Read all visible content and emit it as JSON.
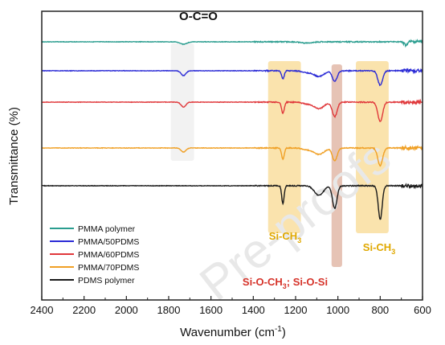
{
  "chart_data": {
    "type": "line",
    "title": "",
    "xlabel": "Wavenumber (cm",
    "xlabel_sup": "-1",
    "xlabel_end": ")",
    "ylabel": "Transmittance (%)",
    "x_reversed": true,
    "xlim": [
      2400,
      600
    ],
    "xticks": [
      "2400",
      "2200",
      "2000",
      "1800",
      "1600",
      "1400",
      "1200",
      "1000",
      "800",
      "600"
    ],
    "y_ticks_shown": false,
    "legend_position": "bottom-left",
    "watermark": "Pre-proofs",
    "series": [
      {
        "name": "PMMA polymer",
        "color": "#2a9d8f",
        "offset": 0,
        "peaks": [
          [
            1730,
            3,
            22
          ],
          [
            1150,
            1.5,
            40
          ],
          [
            680,
            4,
            12
          ]
        ]
      },
      {
        "name": "PMMA/50PDMS",
        "color": "#2b2bd6",
        "offset": 1,
        "peaks": [
          [
            1730,
            6,
            16
          ],
          [
            1260,
            10,
            9
          ],
          [
            1090,
            7,
            35
          ],
          [
            1015,
            13,
            16
          ],
          [
            800,
            18,
            16
          ],
          [
            1150,
            2,
            30
          ]
        ]
      },
      {
        "name": "PMMA/60PDMS",
        "color": "#e0383b",
        "offset": 2,
        "peaks": [
          [
            1730,
            6,
            16
          ],
          [
            1260,
            14,
            9
          ],
          [
            1090,
            8,
            35
          ],
          [
            1015,
            18,
            16
          ],
          [
            800,
            24,
            16
          ],
          [
            1150,
            2,
            30
          ]
        ]
      },
      {
        "name": "PMMA/70PDMS",
        "color": "#f0a025",
        "offset": 3,
        "peaks": [
          [
            1730,
            5,
            16
          ],
          [
            1260,
            14,
            9
          ],
          [
            1090,
            8,
            35
          ],
          [
            1015,
            16,
            16
          ],
          [
            800,
            22,
            16
          ],
          [
            1150,
            2,
            30
          ]
        ]
      },
      {
        "name": "PDMS polymer",
        "color": "#1a1a1a",
        "offset": 4,
        "peaks": [
          [
            1260,
            22,
            8
          ],
          [
            1090,
            12,
            30
          ],
          [
            1015,
            28,
            15
          ],
          [
            800,
            42,
            13
          ]
        ]
      }
    ],
    "annotations": [
      {
        "text": "O-C=O",
        "color": "#111111"
      },
      {
        "text": "Si-CH",
        "sub": "3",
        "color": "#e0a800"
      },
      {
        "text": "Si-CH",
        "sub": "3",
        "color": "#e0a800"
      },
      {
        "text": "Si-O-CH",
        "sub": "3",
        "rest": "; Si-O-Si",
        "color": "#d6332a"
      }
    ],
    "highlight_bands": [
      {
        "x_from": 1790,
        "x_to": 1680,
        "color": "#d9d9d9"
      },
      {
        "x_from": 1330,
        "x_to": 1175,
        "color": "#f5c04a"
      },
      {
        "x_from": 1030,
        "x_to": 980,
        "color": "#c77a5a"
      },
      {
        "x_from": 915,
        "x_to": 760,
        "color": "#f5c04a"
      }
    ]
  }
}
